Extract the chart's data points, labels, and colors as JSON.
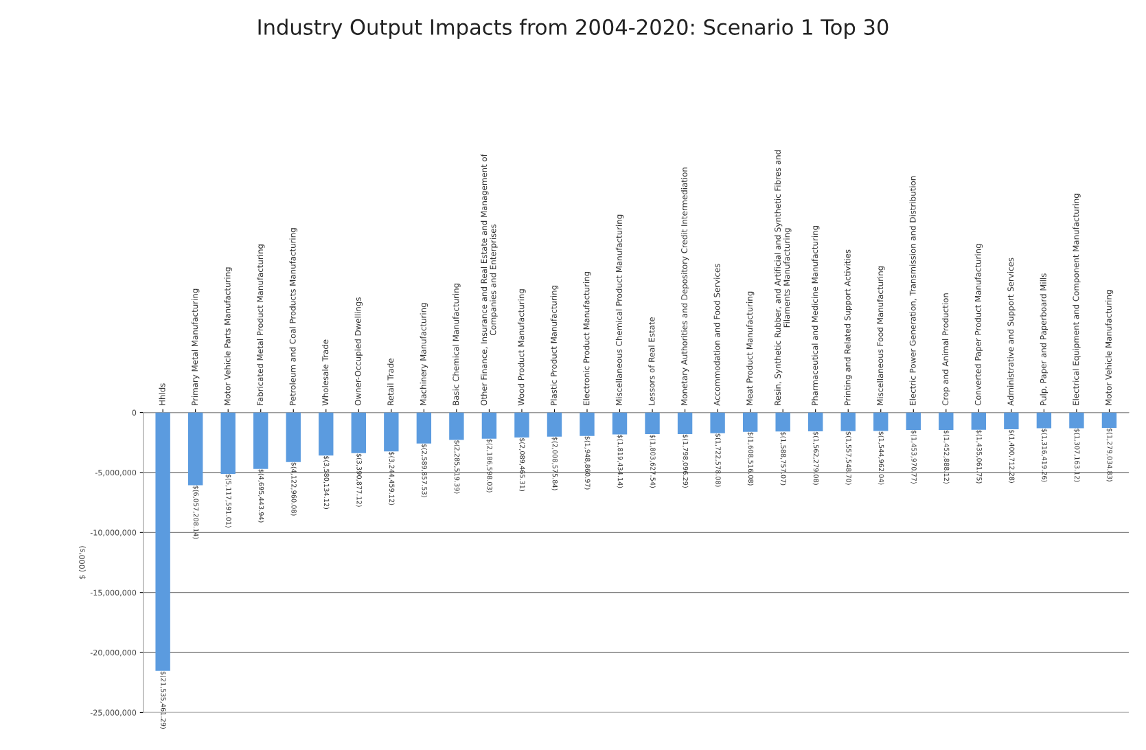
{
  "chart_data": {
    "type": "bar",
    "title": "Industry Output Impacts from 2004-2020: Scenario 1 Top 30",
    "ylabel": "$ (000's)",
    "categories": [
      "Hhlds",
      "Primary Metal Manufacturing",
      "Motor Vehicle Parts Manufacturing",
      "Fabricated Metal Product Manufacturing",
      "Petroleum and Coal Products Manufacturing",
      "Wholesale Trade",
      "Owner-Occupied Dwellings",
      "Retail Trade",
      "Machinery Manufacturing",
      "Basic Chemical Manufacturing",
      "Other Finance, Insurance and Real Estate and Management of\nCompanies and Enterprises",
      "Wood Product Manufacturing",
      "Plastic Product Manufacturing",
      "Electronic Product Manufacturing",
      "Miscellaneous Chemical Product Manufacturing",
      "Lessors of Real Estate",
      "Monetary Authorities and Depository Credit Intermediation",
      "Accommodation and Food Services",
      "Meat Product Manufacturing",
      "Resin, Synthetic Rubber, and Artificial and Synthetic Fibres and\nFilaments Manufacturing",
      "Pharmaceutical and Medicine Manufacturing",
      "Printing and Related Support Activities",
      "Miscellaneous Food Manufacturing",
      "Electric Power Generation, Transmission and Distribution",
      "Crop and Animal Production",
      "Converted Paper Product Manufacturing",
      "Administrative and Support Services",
      "Pulp, Paper and Paperboard Mills",
      "Electrical Equipment and Component Manufacturing",
      "Motor Vehicle Manufacturing"
    ],
    "values": [
      -21535461.29,
      -6057208.14,
      -5117591.01,
      -4695443.94,
      -4122960.08,
      -3580134.12,
      -3390877.12,
      -3244459.12,
      -2589857.53,
      -2285519.39,
      -2186598.03,
      -2089465.31,
      -2008575.84,
      -1948860.97,
      -1819434.14,
      -1803627.54,
      -1798096.29,
      -1722578.08,
      -1608516.08,
      -1588757.07,
      -1562279.08,
      -1557548.7,
      -1544962.04,
      -1453970.77,
      -1452888.12,
      -1435061.75,
      -1400712.28,
      -1316419.26,
      -1307163.12,
      -1279034.83
    ],
    "value_labels": [
      "$(21,535,461.29)",
      "$(6,057,208.14)",
      "$(5,117,591.01)",
      "$(4,695,443.94)",
      "$(4,122,960.08)",
      "$(3,580,134.12)",
      "$(3,390,877.12)",
      "$(3,244,459.12)",
      "$(2,589,857.53)",
      "$(2,285,519.39)",
      "$(2,186,598.03)",
      "$(2,089,465.31)",
      "$(2,008,575.84)",
      "$(1,948,860.97)",
      "$(1,819,434.14)",
      "$(1,803,627.54)",
      "$(1,798,096.29)",
      "$(1,722,578.08)",
      "$(1,608,516.08)",
      "$(1,588,757.07)",
      "$(1,562,279.08)",
      "$(1,557,548.70)",
      "$(1,544,962.04)",
      "$(1,453,970.77)",
      "$(1,452,888.12)",
      "$(1,435,061.75)",
      "$(1,400,712.28)",
      "$(1,316,419.26)",
      "$(1,307,163.12)",
      "$(1,279,034.83)"
    ],
    "color": "#5b9bdf",
    "ylim": [
      -25000000,
      0
    ],
    "yticks": [
      {
        "value": -25000000,
        "label": "-25,000,000"
      },
      {
        "value": -20000000,
        "label": "-20,000,000"
      },
      {
        "value": -15000000,
        "label": "-15,000,000"
      },
      {
        "value": -10000000,
        "label": "-10,000,000"
      },
      {
        "value": -5000000,
        "label": "-5,000,000"
      },
      0
    ],
    "grid": "y",
    "legend": false
  }
}
